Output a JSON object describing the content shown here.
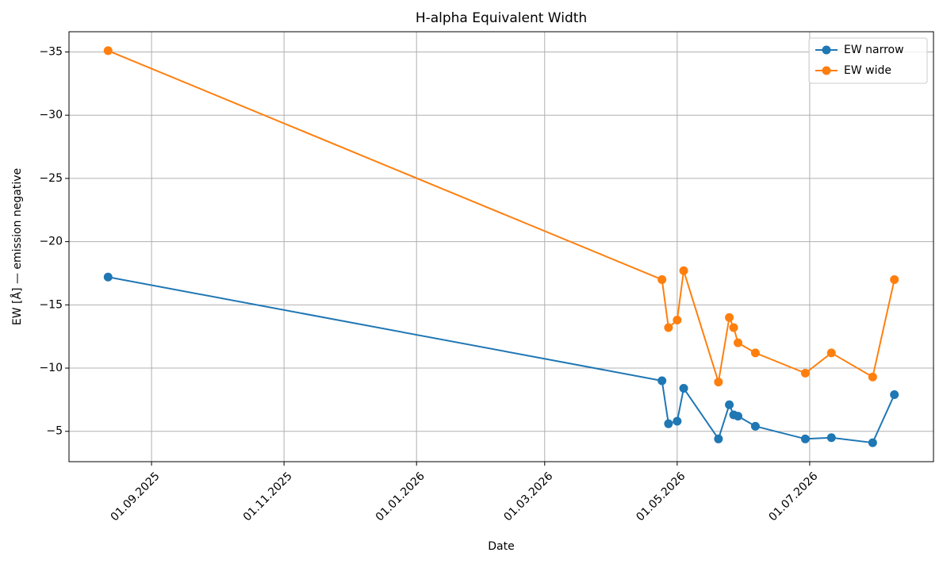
{
  "chart_data": {
    "type": "line",
    "title": "H-alpha Equivalent Width",
    "x_label": "Date",
    "y_label": "EW [Å] — emission negative",
    "x": [
      "2025-08-12",
      "2026-04-24",
      "2026-04-27",
      "2026-05-01",
      "2026-05-04",
      "2026-05-20",
      "2026-05-25",
      "2026-05-27",
      "2026-05-29",
      "2026-06-06",
      "2026-06-29",
      "2026-07-11",
      "2026-07-30",
      "2026-08-09"
    ],
    "series": [
      {
        "name": "EW narrow",
        "color": "#1f77b4",
        "values": [
          -17.2,
          -9.0,
          -5.6,
          -5.8,
          -8.4,
          -4.4,
          -7.1,
          -6.3,
          -6.2,
          -5.4,
          -4.4,
          -4.5,
          -4.1,
          -7.9
        ]
      },
      {
        "name": "EW wide",
        "color": "#ff7f0e",
        "values": [
          -35.1,
          -17.0,
          -13.2,
          -13.8,
          -17.7,
          -8.9,
          -14.0,
          -13.2,
          -12.0,
          -11.2,
          -9.6,
          -11.2,
          -9.3,
          -17.0
        ]
      }
    ],
    "xlim": [
      "2025-07-25",
      "2026-08-27"
    ],
    "xticks": [
      {
        "value": "2025-09-01",
        "label": "01.09.2025"
      },
      {
        "value": "2025-11-01",
        "label": "01.11.2025"
      },
      {
        "value": "2026-01-01",
        "label": "01.01.2026"
      },
      {
        "value": "2026-03-01",
        "label": "01.03.2026"
      },
      {
        "value": "2026-05-01",
        "label": "01.05.2026"
      },
      {
        "value": "2026-07-01",
        "label": "01.07.2026"
      }
    ],
    "ylim": [
      -2.6,
      -36.6
    ],
    "yticks": [
      {
        "value": -5,
        "label": "−5"
      },
      {
        "value": -10,
        "label": "−10"
      },
      {
        "value": -15,
        "label": "−15"
      },
      {
        "value": -20,
        "label": "−20"
      },
      {
        "value": -25,
        "label": "−25"
      },
      {
        "value": -30,
        "label": "−30"
      },
      {
        "value": -35,
        "label": "−35"
      }
    ],
    "grid": true,
    "legend": "upper right"
  }
}
